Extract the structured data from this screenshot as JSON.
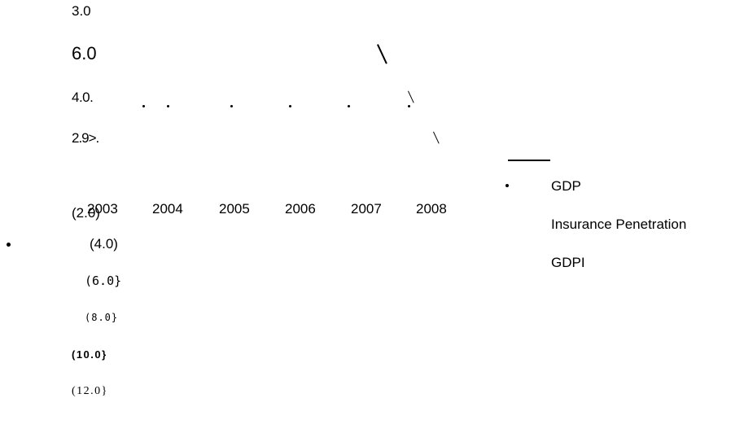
{
  "axis_labels": [
    "3.0",
    "6.0",
    "4.0.",
    "2.9>.",
    "(2.0)",
    "(4.0)",
    "(6.0}",
    "(8.0}",
    "(10.0}",
    "(12.0}"
  ],
  "years": [
    "2003",
    "2004",
    "2005",
    "2006",
    "2007",
    "2008"
  ],
  "legend": [
    "GDP",
    "Insurance Penetration",
    "GDPI"
  ]
}
